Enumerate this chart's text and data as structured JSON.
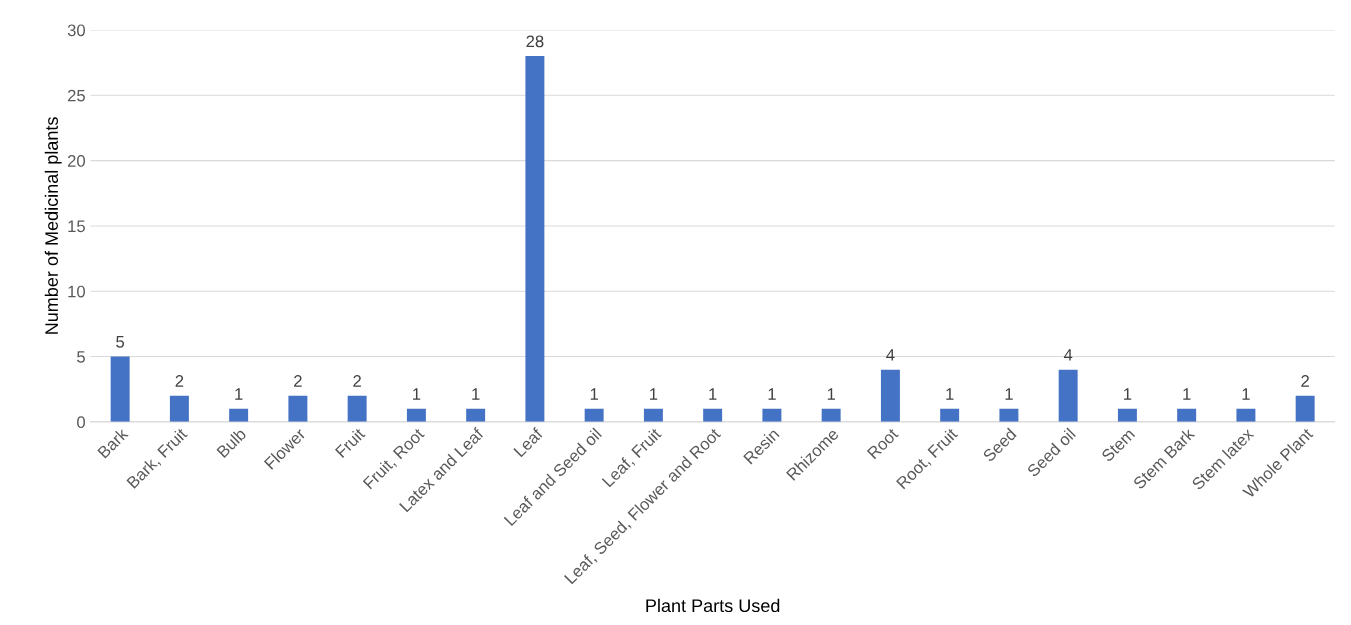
{
  "chart_data": {
    "type": "bar",
    "xlabel": "Plant Parts Used",
    "ylabel": "Number of Medicinal plants",
    "categories": [
      "Bark",
      "Bark, Fruit",
      "Bulb",
      "Flower",
      "Fruit",
      "Fruit, Root",
      "Latex and Leaf",
      "Leaf",
      "Leaf and Seed oil",
      "Leaf, Fruit",
      "Leaf, Seed, Flower and Root",
      "Resin",
      "Rhizome",
      "Root",
      "Root, Fruit",
      "Seed",
      "Seed oil",
      "Stem",
      "Stem Bark",
      "Stem latex",
      "Whole Plant"
    ],
    "values": [
      5,
      2,
      1,
      2,
      2,
      1,
      1,
      28,
      1,
      1,
      1,
      1,
      1,
      4,
      1,
      1,
      4,
      1,
      1,
      1,
      2
    ],
    "color": "#4472c4",
    "ylim": [
      0,
      30
    ],
    "yticks": [
      0,
      5,
      10,
      15,
      20,
      25,
      30
    ],
    "grid": "y",
    "data_labels": true,
    "legend": false
  }
}
